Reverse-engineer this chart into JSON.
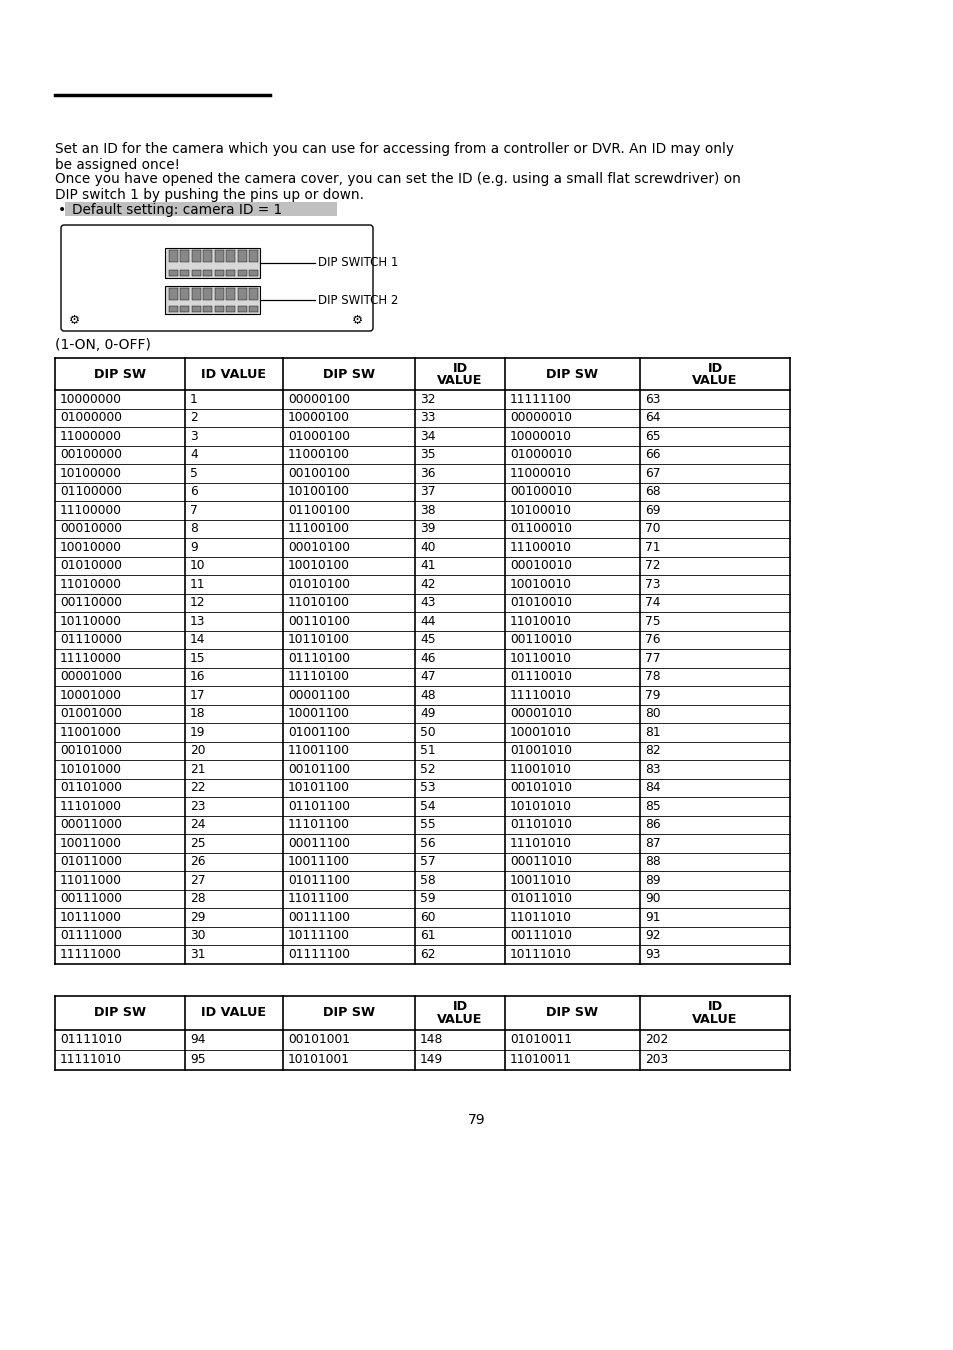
{
  "paragraph1_line1": "Set an ID for the camera which you can use for accessing from a controller or DVR. An ID may only",
  "paragraph1_line2": "be assigned once!",
  "paragraph2_line1": "Once you have opened the camera cover, you can set the ID (e.g. using a small flat screwdriver) on",
  "paragraph2_line2": "DIP switch 1 by pushing the pins up or down.",
  "bullet": "Default setting: camera ID = 1",
  "on_off_label": "(1-ON, 0-OFF)",
  "dip_switch1_label": "DIP SWITCH 1",
  "dip_switch2_label": "DIP SWITCH 2",
  "table1_headers": [
    "DIP SW",
    "ID VALUE",
    "DIP SW",
    "ID\nVALUE",
    "DIP SW",
    "ID\nVALUE"
  ],
  "table1_data": [
    [
      "10000000",
      "1",
      "00000100",
      "32",
      "11111100",
      "63"
    ],
    [
      "01000000",
      "2",
      "10000100",
      "33",
      "00000010",
      "64"
    ],
    [
      "11000000",
      "3",
      "01000100",
      "34",
      "10000010",
      "65"
    ],
    [
      "00100000",
      "4",
      "11000100",
      "35",
      "01000010",
      "66"
    ],
    [
      "10100000",
      "5",
      "00100100",
      "36",
      "11000010",
      "67"
    ],
    [
      "01100000",
      "6",
      "10100100",
      "37",
      "00100010",
      "68"
    ],
    [
      "11100000",
      "7",
      "01100100",
      "38",
      "10100010",
      "69"
    ],
    [
      "00010000",
      "8",
      "11100100",
      "39",
      "01100010",
      "70"
    ],
    [
      "10010000",
      "9",
      "00010100",
      "40",
      "11100010",
      "71"
    ],
    [
      "01010000",
      "10",
      "10010100",
      "41",
      "00010010",
      "72"
    ],
    [
      "11010000",
      "11",
      "01010100",
      "42",
      "10010010",
      "73"
    ],
    [
      "00110000",
      "12",
      "11010100",
      "43",
      "01010010",
      "74"
    ],
    [
      "10110000",
      "13",
      "00110100",
      "44",
      "11010010",
      "75"
    ],
    [
      "01110000",
      "14",
      "10110100",
      "45",
      "00110010",
      "76"
    ],
    [
      "11110000",
      "15",
      "01110100",
      "46",
      "10110010",
      "77"
    ],
    [
      "00001000",
      "16",
      "11110100",
      "47",
      "01110010",
      "78"
    ],
    [
      "10001000",
      "17",
      "00001100",
      "48",
      "11110010",
      "79"
    ],
    [
      "01001000",
      "18",
      "10001100",
      "49",
      "00001010",
      "80"
    ],
    [
      "11001000",
      "19",
      "01001100",
      "50",
      "10001010",
      "81"
    ],
    [
      "00101000",
      "20",
      "11001100",
      "51",
      "01001010",
      "82"
    ],
    [
      "10101000",
      "21",
      "00101100",
      "52",
      "11001010",
      "83"
    ],
    [
      "01101000",
      "22",
      "10101100",
      "53",
      "00101010",
      "84"
    ],
    [
      "11101000",
      "23",
      "01101100",
      "54",
      "10101010",
      "85"
    ],
    [
      "00011000",
      "24",
      "11101100",
      "55",
      "01101010",
      "86"
    ],
    [
      "10011000",
      "25",
      "00011100",
      "56",
      "11101010",
      "87"
    ],
    [
      "01011000",
      "26",
      "10011100",
      "57",
      "00011010",
      "88"
    ],
    [
      "11011000",
      "27",
      "01011100",
      "58",
      "10011010",
      "89"
    ],
    [
      "00111000",
      "28",
      "11011100",
      "59",
      "01011010",
      "90"
    ],
    [
      "10111000",
      "29",
      "00111100",
      "60",
      "11011010",
      "91"
    ],
    [
      "01111000",
      "30",
      "10111100",
      "61",
      "00111010",
      "92"
    ],
    [
      "11111000",
      "31",
      "01111100",
      "62",
      "10111010",
      "93"
    ]
  ],
  "table2_headers": [
    "DIP SW",
    "ID VALUE",
    "DIP SW",
    "ID\nVALUE",
    "DIP SW",
    "ID\nVALUE"
  ],
  "table2_data": [
    [
      "01111010",
      "94",
      "00101001",
      "148",
      "01010011",
      "202"
    ],
    [
      "11111010",
      "95",
      "10101001",
      "149",
      "11010011",
      "203"
    ]
  ],
  "page_number": "79",
  "bg_color": "#ffffff",
  "text_color": "#000000",
  "highlight_color": "#c0c0c0",
  "table_line_color": "#000000"
}
